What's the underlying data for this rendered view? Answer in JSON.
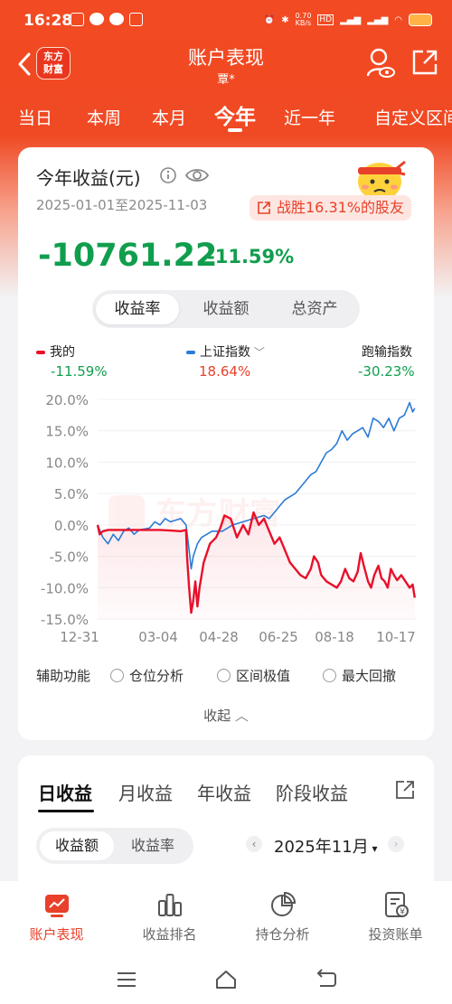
{
  "status_bar": {
    "time": "16:28",
    "net_speed": "0.70\nKB/s"
  },
  "nav": {
    "logo_line1": "东方",
    "logo_line2": "财富",
    "title": "账户表现",
    "subtitle": "覃*"
  },
  "period_tabs": [
    "当日",
    "本周",
    "本月",
    "今年",
    "近一年",
    "自定义区间"
  ],
  "period_active": "今年",
  "card": {
    "title": "今年收益(元)",
    "date_range": "2025-01-01至2025-11-03",
    "beat_text": "战胜16.31%的股友",
    "amount": "-10761.22",
    "pct": "-11.59%",
    "segments": [
      "收益率",
      "收益额",
      "总资产"
    ]
  },
  "legend": {
    "mine_label": "我的",
    "mine_value": "-11.59%",
    "index_label": "上证指数",
    "index_value": "18.64%",
    "diff_label": "跑输指数",
    "diff_value": "-30.23%"
  },
  "chart_data": {
    "type": "line",
    "y_ticks": [
      "20.0%",
      "15.0%",
      "10.0%",
      "5.0%",
      "0.0%",
      "-5.0%",
      "-10.0%",
      "-15.0%"
    ],
    "x_ticks": [
      "12-31",
      "03-04",
      "04-28",
      "06-25",
      "08-18",
      "10-17"
    ],
    "ylim": [
      -15,
      20
    ],
    "x_range_days": [
      0,
      306
    ],
    "series": [
      {
        "name": "我的",
        "color": "#e8102a",
        "points": [
          [
            0,
            0
          ],
          [
            2,
            -1.5
          ],
          [
            5,
            -1
          ],
          [
            10,
            -0.8
          ],
          [
            20,
            -0.8
          ],
          [
            40,
            -0.8
          ],
          [
            60,
            -0.8
          ],
          [
            70,
            -0.9
          ],
          [
            80,
            -1
          ],
          [
            85,
            -0.8
          ],
          [
            86,
            -5
          ],
          [
            88,
            -10
          ],
          [
            90,
            -14
          ],
          [
            92,
            -12
          ],
          [
            94,
            -9
          ],
          [
            96,
            -13
          ],
          [
            98,
            -10
          ],
          [
            102,
            -6
          ],
          [
            108,
            -3
          ],
          [
            114,
            -2
          ],
          [
            118,
            -0.5
          ],
          [
            122,
            1.5
          ],
          [
            128,
            1
          ],
          [
            134,
            -2
          ],
          [
            140,
            0
          ],
          [
            145,
            -1.5
          ],
          [
            150,
            2
          ],
          [
            155,
            0
          ],
          [
            160,
            1
          ],
          [
            165,
            -1
          ],
          [
            170,
            -3
          ],
          [
            175,
            -2
          ],
          [
            180,
            -4
          ],
          [
            185,
            -6
          ],
          [
            190,
            -7
          ],
          [
            195,
            -8
          ],
          [
            200,
            -8.5
          ],
          [
            205,
            -7
          ],
          [
            208,
            -5
          ],
          [
            212,
            -6
          ],
          [
            215,
            -8
          ],
          [
            220,
            -9
          ],
          [
            225,
            -9.5
          ],
          [
            230,
            -10
          ],
          [
            234,
            -9
          ],
          [
            238,
            -7
          ],
          [
            242,
            -8.5
          ],
          [
            246,
            -9
          ],
          [
            250,
            -7.5
          ],
          [
            253,
            -4.5
          ],
          [
            256,
            -6.5
          ],
          [
            260,
            -9
          ],
          [
            263,
            -10
          ],
          [
            266,
            -8
          ],
          [
            270,
            -6.5
          ],
          [
            273,
            -8.5
          ],
          [
            276,
            -9
          ],
          [
            279,
            -10
          ],
          [
            282,
            -7
          ],
          [
            285,
            -8
          ],
          [
            288,
            -8.8
          ],
          [
            292,
            -8
          ],
          [
            296,
            -9
          ],
          [
            300,
            -10
          ],
          [
            303,
            -9.5
          ],
          [
            305,
            -11.6
          ]
        ]
      },
      {
        "name": "上证指数",
        "color": "#2b7bd6",
        "points": [
          [
            0,
            0
          ],
          [
            5,
            -2
          ],
          [
            10,
            -3
          ],
          [
            15,
            -1.5
          ],
          [
            20,
            -2.5
          ],
          [
            25,
            -1
          ],
          [
            30,
            -0.5
          ],
          [
            35,
            -1.5
          ],
          [
            40,
            -0.8
          ],
          [
            50,
            -0.5
          ],
          [
            55,
            0.5
          ],
          [
            60,
            0
          ],
          [
            65,
            1
          ],
          [
            70,
            0.5
          ],
          [
            80,
            1
          ],
          [
            85,
            0
          ],
          [
            88,
            -4
          ],
          [
            90,
            -7
          ],
          [
            92,
            -5
          ],
          [
            96,
            -3
          ],
          [
            100,
            -2
          ],
          [
            110,
            -1
          ],
          [
            120,
            -1
          ],
          [
            125,
            -0.5
          ],
          [
            130,
            0
          ],
          [
            140,
            0.5
          ],
          [
            150,
            1
          ],
          [
            160,
            1.5
          ],
          [
            165,
            1
          ],
          [
            170,
            2
          ],
          [
            175,
            3
          ],
          [
            180,
            4
          ],
          [
            190,
            5
          ],
          [
            200,
            7
          ],
          [
            205,
            8
          ],
          [
            210,
            8.5
          ],
          [
            215,
            10
          ],
          [
            220,
            11.5
          ],
          [
            225,
            12
          ],
          [
            230,
            13
          ],
          [
            235,
            15
          ],
          [
            240,
            13.5
          ],
          [
            245,
            14.5
          ],
          [
            250,
            15
          ],
          [
            255,
            15.5
          ],
          [
            260,
            14
          ],
          [
            265,
            17
          ],
          [
            270,
            16.5
          ],
          [
            275,
            15.5
          ],
          [
            280,
            17
          ],
          [
            285,
            15
          ],
          [
            290,
            17
          ],
          [
            295,
            17.5
          ],
          [
            300,
            19.5
          ],
          [
            303,
            18
          ],
          [
            305,
            18.6
          ]
        ]
      }
    ]
  },
  "aux": {
    "label": "辅助功能",
    "options": [
      "仓位分析",
      "区间极值",
      "最大回撤"
    ]
  },
  "collapse_label": "收起",
  "card2": {
    "tabs": [
      "日收益",
      "月收益",
      "年收益",
      "阶段收益"
    ],
    "segments": [
      "收益额",
      "收益率"
    ],
    "month": "2025年11月"
  },
  "bottom_nav": [
    "账户表现",
    "收益排名",
    "持仓分析",
    "投资账单"
  ]
}
